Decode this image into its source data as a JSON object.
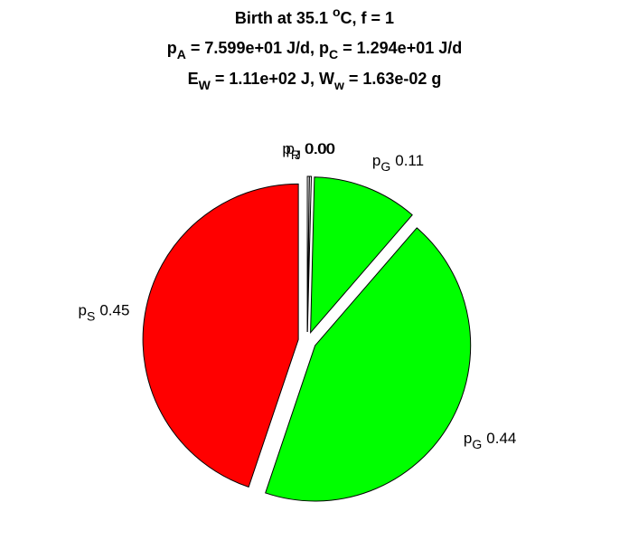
{
  "chart_data": {
    "type": "pie",
    "title_lines": [
      [
        {
          "text": "Birth at 35.1 "
        },
        {
          "text": "o",
          "sup": true
        },
        {
          "text": "C, f = 1"
        }
      ],
      [
        {
          "text": "p"
        },
        {
          "text": "A",
          "sub": true
        },
        {
          "text": " = 7.599e+01 J/d, p"
        },
        {
          "text": "C",
          "sub": true
        },
        {
          "text": " = 1.294e+01 J/d"
        }
      ],
      [
        {
          "text": "E"
        },
        {
          "text": "W",
          "sub": true
        },
        {
          "text": " = 1.11e+02 J, W"
        },
        {
          "text": "w",
          "sub": true
        },
        {
          "text": " = 1.63e-02 g"
        }
      ]
    ],
    "categories": [
      {
        "text": "p",
        "sub": "S"
      },
      {
        "text": "p",
        "sub": "G"
      },
      {
        "text": "p",
        "sub": "G"
      },
      {
        "text": "p",
        "sub": "J"
      },
      {
        "text": "p",
        "sub": "R"
      }
    ],
    "values": [
      0.45,
      0.44,
      0.11,
      0.002,
      0.002
    ],
    "value_labels": [
      "0.45",
      "0.44",
      "0.11",
      "0.00",
      "0.00"
    ],
    "colors": [
      "#ff0000",
      "#00ff00",
      "#00ff00",
      "#ffffff",
      "#ffffff"
    ],
    "explode": true
  }
}
